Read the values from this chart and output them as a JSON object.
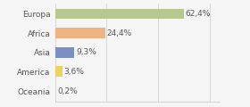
{
  "categories": [
    "Europa",
    "Africa",
    "Asia",
    "America",
    "Oceania"
  ],
  "values": [
    62.4,
    24.4,
    9.3,
    3.6,
    0.2
  ],
  "labels": [
    "62,4%",
    "24,4%",
    "9,3%",
    "3,6%",
    "0,2%"
  ],
  "bar_colors": [
    "#b5c98e",
    "#f0b482",
    "#7b8fc2",
    "#f0d060",
    "#a8c8a0"
  ],
  "background_color": "#f5f5f5",
  "xlim": [
    0,
    80
  ],
  "bar_height": 0.55,
  "label_fontsize": 6.5,
  "tick_fontsize": 6.5,
  "grid_xticks": [
    0,
    25,
    50,
    75
  ]
}
